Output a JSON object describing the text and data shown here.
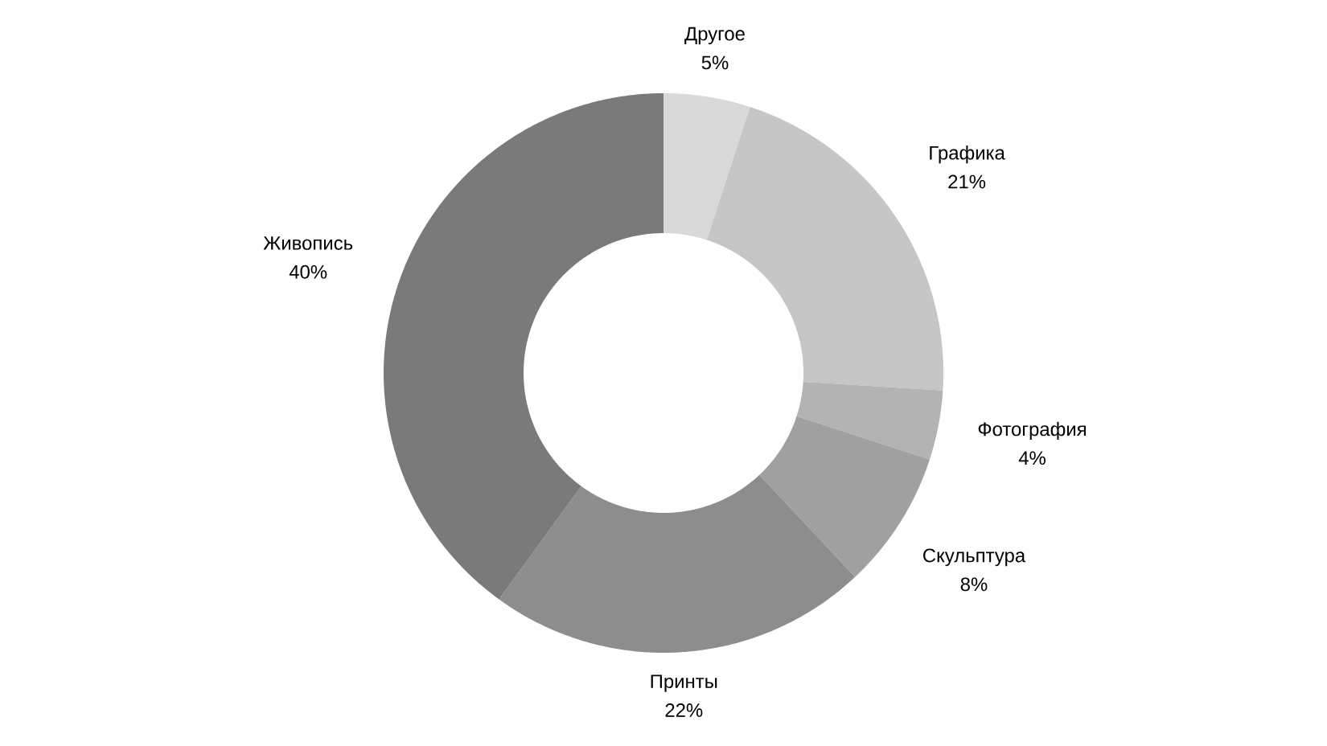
{
  "chart_data": {
    "type": "donut",
    "categories": [
      "Другое",
      "Графика",
      "Фотография",
      "Скульптура",
      "Принты",
      "Живопись"
    ],
    "values": [
      5,
      21,
      4,
      8,
      22,
      40
    ],
    "colors": [
      "#d9d9d9",
      "#c6c6c6",
      "#b3b3b3",
      "#a0a0a0",
      "#8d8d8d",
      "#7a7a7a"
    ],
    "value_labels": [
      "5%",
      "21%",
      "4%",
      "8%",
      "22%",
      "40%"
    ]
  }
}
